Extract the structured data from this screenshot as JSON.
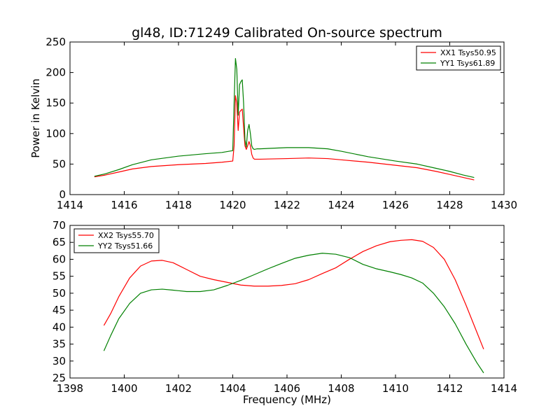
{
  "figure": {
    "title": "gl48, ID:71249 Calibrated On-source spectrum",
    "colors": {
      "red": "#ff0000",
      "green": "#008000"
    }
  },
  "chart_data": [
    {
      "type": "line",
      "title": "gl48, ID:71249 Calibrated On-source spectrum",
      "xlabel": "",
      "ylabel": "Power in Kelvin",
      "xlim": [
        1414,
        1430
      ],
      "ylim": [
        0,
        250
      ],
      "xticks": [
        "1414",
        "1416",
        "1418",
        "1420",
        "1422",
        "1424",
        "1426",
        "1428",
        "1430"
      ],
      "yticks": [
        "0",
        "50",
        "100",
        "150",
        "200",
        "250"
      ],
      "grid": false,
      "legend_position": "top-right",
      "series": [
        {
          "name": "XX1 Tsys50.95",
          "color": "#ff0000",
          "x": [
            1414.9,
            1415.3,
            1415.8,
            1416.3,
            1417.0,
            1418.0,
            1419.0,
            1419.6,
            1420.0,
            1420.05,
            1420.1,
            1420.15,
            1420.2,
            1420.25,
            1420.3,
            1420.35,
            1420.4,
            1420.45,
            1420.5,
            1420.55,
            1420.6,
            1420.65,
            1420.7,
            1420.75,
            1420.8,
            1420.9,
            1421.0,
            1422.0,
            1422.8,
            1423.5,
            1424.0,
            1425.0,
            1426.0,
            1426.8,
            1427.5,
            1428.0,
            1428.5,
            1428.9
          ],
          "y": [
            29,
            32,
            37,
            42,
            46,
            49,
            51,
            53,
            55,
            80,
            162,
            150,
            105,
            135,
            138,
            140,
            110,
            80,
            74,
            80,
            87,
            80,
            66,
            60,
            58,
            58,
            58,
            59,
            60,
            59,
            57,
            53,
            48,
            44,
            38,
            33,
            28,
            24
          ]
        },
        {
          "name": "YY1 Tsys61.89",
          "color": "#008000",
          "x": [
            1414.9,
            1415.3,
            1415.8,
            1416.3,
            1417.0,
            1418.0,
            1419.0,
            1419.6,
            1420.0,
            1420.05,
            1420.1,
            1420.15,
            1420.2,
            1420.25,
            1420.3,
            1420.35,
            1420.4,
            1420.45,
            1420.5,
            1420.55,
            1420.6,
            1420.65,
            1420.7,
            1420.75,
            1420.8,
            1420.9,
            1421.0,
            1422.0,
            1422.8,
            1423.5,
            1424.0,
            1425.0,
            1426.0,
            1426.8,
            1427.5,
            1428.0,
            1428.5,
            1428.9
          ],
          "y": [
            30,
            34,
            41,
            49,
            57,
            63,
            67,
            69,
            72,
            150,
            223,
            205,
            130,
            180,
            185,
            188,
            150,
            90,
            78,
            105,
            115,
            100,
            80,
            75,
            74,
            75,
            75,
            77,
            77,
            75,
            71,
            62,
            55,
            50,
            43,
            38,
            32,
            28
          ]
        }
      ]
    },
    {
      "type": "line",
      "title": "",
      "xlabel": "Frequency (MHz)",
      "ylabel": "",
      "xlim": [
        1398,
        1414
      ],
      "ylim": [
        25,
        70
      ],
      "xticks": [
        "1398",
        "1400",
        "1402",
        "1404",
        "1406",
        "1408",
        "1410",
        "1412",
        "1414"
      ],
      "yticks": [
        "25",
        "30",
        "35",
        "40",
        "45",
        "50",
        "55",
        "60",
        "65",
        "70"
      ],
      "grid": false,
      "legend_position": "top-left",
      "series": [
        {
          "name": "XX2 Tsys55.70",
          "color": "#ff0000",
          "x": [
            1399.25,
            1399.5,
            1399.8,
            1400.2,
            1400.6,
            1401.0,
            1401.4,
            1401.8,
            1402.3,
            1402.8,
            1403.3,
            1403.8,
            1404.3,
            1404.8,
            1405.3,
            1405.8,
            1406.3,
            1406.8,
            1407.3,
            1407.8,
            1408.3,
            1408.8,
            1409.3,
            1409.8,
            1410.2,
            1410.6,
            1411.0,
            1411.4,
            1411.8,
            1412.2,
            1412.6,
            1413.0,
            1413.25
          ],
          "y": [
            40.5,
            44,
            49,
            54.5,
            58,
            59.5,
            59.7,
            59,
            57,
            55,
            54,
            53.2,
            52.4,
            52.1,
            52.1,
            52.3,
            52.8,
            54,
            55.8,
            57.5,
            60,
            62.3,
            64,
            65.2,
            65.6,
            65.8,
            65.3,
            63.5,
            60,
            54,
            46.5,
            38.5,
            33.5
          ]
        },
        {
          "name": "YY2 Tsys51.66",
          "color": "#008000",
          "x": [
            1399.25,
            1399.5,
            1399.8,
            1400.2,
            1400.6,
            1401.0,
            1401.4,
            1401.8,
            1402.3,
            1402.8,
            1403.3,
            1403.8,
            1404.3,
            1404.8,
            1405.3,
            1405.8,
            1406.3,
            1406.8,
            1407.3,
            1407.8,
            1408.3,
            1408.8,
            1409.3,
            1409.8,
            1410.2,
            1410.6,
            1411.0,
            1411.4,
            1411.8,
            1412.2,
            1412.6,
            1413.0,
            1413.25
          ],
          "y": [
            33,
            37.5,
            42.5,
            47,
            50,
            51,
            51.2,
            50.9,
            50.5,
            50.5,
            51,
            52.3,
            53.8,
            55.5,
            57.2,
            58.8,
            60.3,
            61.2,
            61.8,
            61.5,
            60.5,
            58.5,
            57.2,
            56.3,
            55.5,
            54.5,
            53,
            50,
            46,
            41,
            35,
            29.5,
            26.5
          ]
        }
      ]
    }
  ]
}
